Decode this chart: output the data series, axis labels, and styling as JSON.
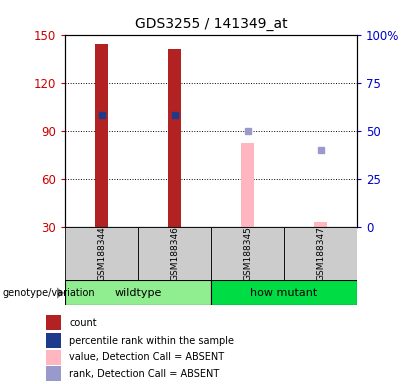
{
  "title": "GDS3255 / 141349_at",
  "samples": [
    "GSM188344",
    "GSM188346",
    "GSM188345",
    "GSM188347"
  ],
  "bar_data": {
    "GSM188344": {
      "count": 144,
      "rank": 58,
      "absent_value": null,
      "absent_rank": null
    },
    "GSM188346": {
      "count": 141,
      "rank": 58,
      "absent_value": null,
      "absent_rank": null
    },
    "GSM188345": {
      "count": null,
      "rank": null,
      "absent_value": 82,
      "absent_rank": 50
    },
    "GSM188347": {
      "count": null,
      "rank": null,
      "absent_value": 33,
      "absent_rank": 40
    }
  },
  "ylim_left": [
    30,
    150
  ],
  "ylim_right": [
    0,
    100
  ],
  "yticks_left": [
    30,
    60,
    90,
    120,
    150
  ],
  "yticks_right": [
    0,
    25,
    50,
    75,
    100
  ],
  "yticklabels_right": [
    "0",
    "25",
    "50",
    "75",
    "100%"
  ],
  "bar_width": 0.18,
  "count_color": "#B22222",
  "rank_color": "#1E3A8A",
  "absent_value_color": "#FFB6C1",
  "absent_rank_color": "#9999CC",
  "bg_color": "#FFFFFF",
  "plot_bg": "#FFFFFF",
  "left_tick_color": "#CC0000",
  "right_tick_color": "#0000CC",
  "wildtype_color": "#90EE90",
  "howmutant_color": "#00CC44",
  "sample_box_color": "#CCCCCC",
  "legend_items": [
    {
      "label": "count",
      "color": "#B22222"
    },
    {
      "label": "percentile rank within the sample",
      "color": "#1E3A8A"
    },
    {
      "label": "value, Detection Call = ABSENT",
      "color": "#FFB6C1"
    },
    {
      "label": "rank, Detection Call = ABSENT",
      "color": "#9999CC"
    }
  ],
  "groups": [
    {
      "start": 0,
      "end": 2,
      "label": "wildtype",
      "color": "#90EE90"
    },
    {
      "start": 2,
      "end": 4,
      "label": "how mutant",
      "color": "#00DD44"
    }
  ]
}
